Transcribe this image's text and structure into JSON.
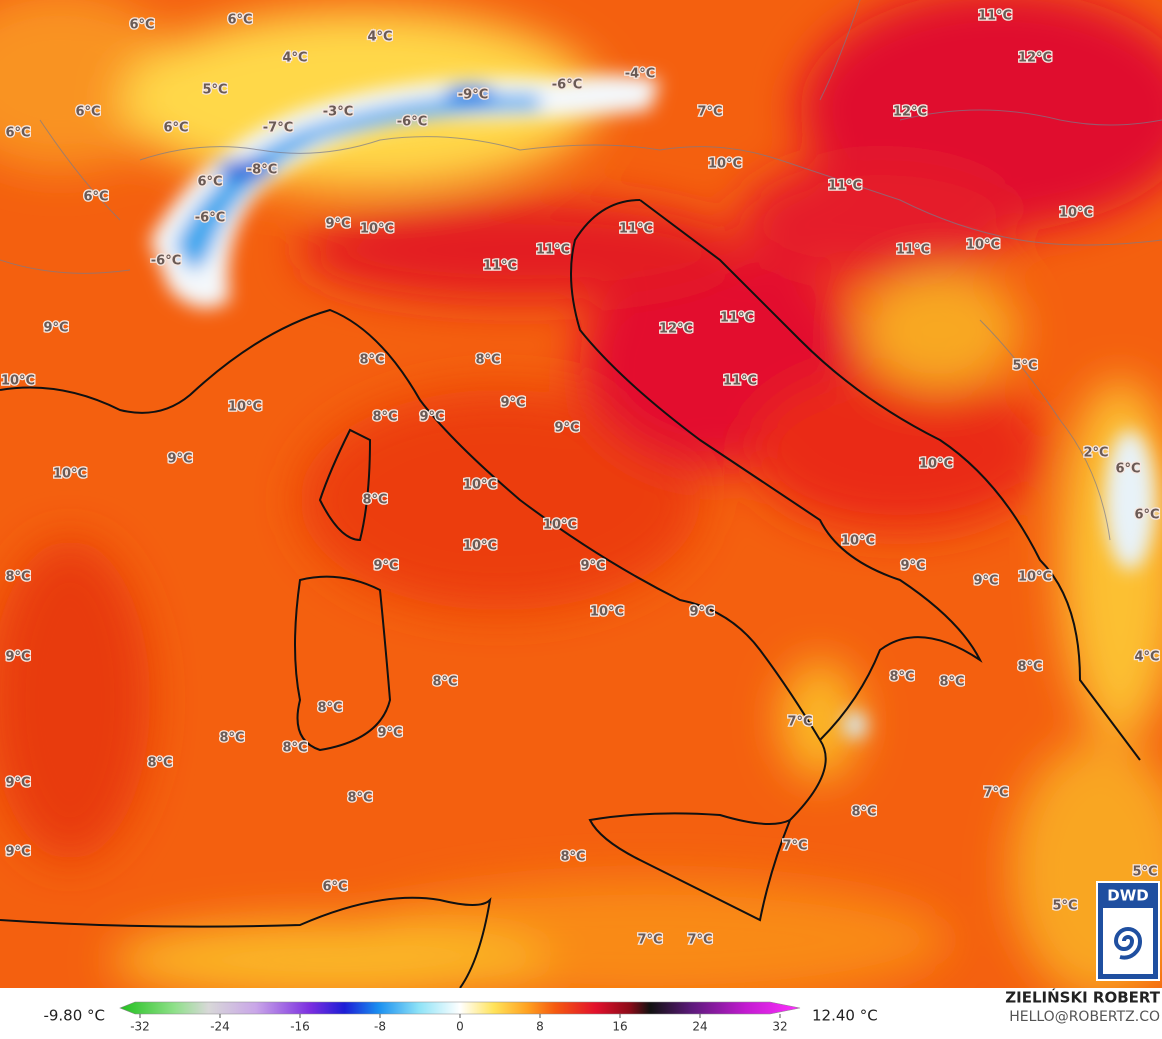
{
  "map": {
    "labels": [
      "6°C",
      "6°C",
      "4°C",
      "4°C",
      "5°C",
      "6°C",
      "6°C",
      "6°C",
      "-3°C",
      "-7°C",
      "-6°C",
      "-9°C",
      "-6°C",
      "-4°C",
      "7°C",
      "11°C",
      "12°C",
      "12°C",
      "-8°C",
      "6°C",
      "6°C",
      "-6°C",
      "10°C",
      "11°C",
      "9°C",
      "10°C",
      "11°C",
      "11°C",
      "-6°C",
      "11°C",
      "11°C",
      "10°C",
      "10°C",
      "9°C",
      "12°C",
      "11°C",
      "8°C",
      "8°C",
      "5°C",
      "10°C",
      "11°C",
      "10°C",
      "8°C",
      "9°C",
      "9°C",
      "9°C",
      "9°C",
      "10°C",
      "10°C",
      "2°C",
      "6°C",
      "10°C",
      "8°C",
      "10°C",
      "10°C",
      "10°C",
      "9°C",
      "9°C",
      "9°C",
      "8°C",
      "9°C",
      "10°C",
      "10°C",
      "9°C",
      "9°C",
      "8°C",
      "8°C",
      "8°C",
      "8°C",
      "8°C",
      "8°C",
      "8°C",
      "9°C",
      "7°C",
      "8°C",
      "9°C",
      "8°C",
      "7°C",
      "8°C",
      "7°C",
      "8°C",
      "9°C",
      "5°C",
      "6°C",
      "5°C",
      "7°C",
      "7°C",
      "4°C",
      "6°C"
    ],
    "colorbar": {
      "min_label": "-9.80 °C",
      "max_label": "12.40 °C",
      "ticks": [
        -32,
        -24,
        -16,
        -8,
        0,
        8,
        16,
        24,
        32
      ],
      "range": [
        -34,
        34
      ]
    }
  },
  "credit": {
    "author": "ZIELIŃSKI ROBERT",
    "email": "HELLO@ROBERTZ.CO"
  },
  "logo": "DWD"
}
